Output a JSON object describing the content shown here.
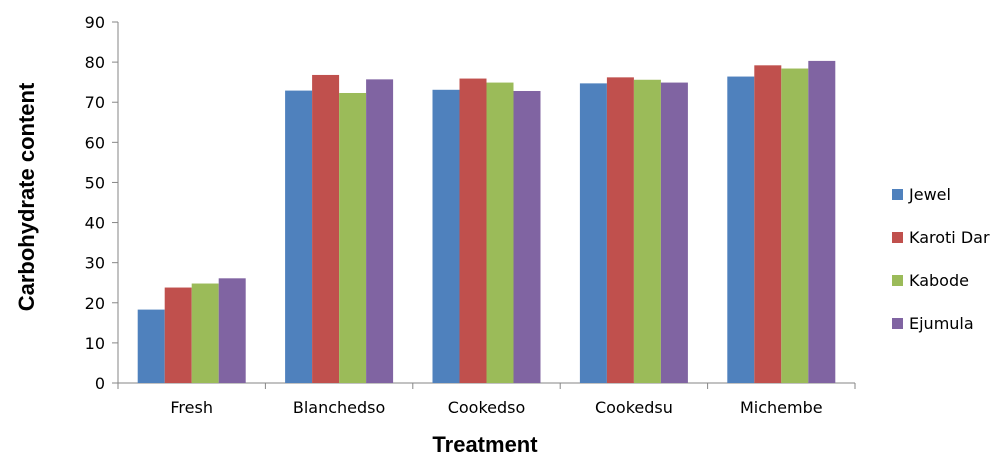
{
  "chart_data": {
    "type": "bar",
    "title": "",
    "xlabel": "Treatment",
    "ylabel": "Carbohydrate content",
    "ylim": [
      0,
      90
    ],
    "yticks": [
      0,
      10,
      20,
      30,
      40,
      50,
      60,
      70,
      80,
      90
    ],
    "categories": [
      "Fresh",
      "Blanchedso",
      "Cookedso",
      "Cookedsu",
      "Michembe"
    ],
    "series": [
      {
        "name": "Jewel",
        "color": "#4F81BD",
        "values": [
          18.3,
          72.9,
          73.1,
          74.7,
          76.4
        ]
      },
      {
        "name": "Karoti Dar",
        "color": "#C0504D",
        "values": [
          23.8,
          76.8,
          75.9,
          76.2,
          79.2
        ]
      },
      {
        "name": "Kabode",
        "color": "#9BBB59",
        "values": [
          24.8,
          72.3,
          74.9,
          75.6,
          78.4
        ]
      },
      {
        "name": "Ejumula",
        "color": "#8064A2",
        "values": [
          26.1,
          75.7,
          72.8,
          74.9,
          80.3
        ]
      }
    ],
    "grid": false,
    "legend": "right"
  }
}
